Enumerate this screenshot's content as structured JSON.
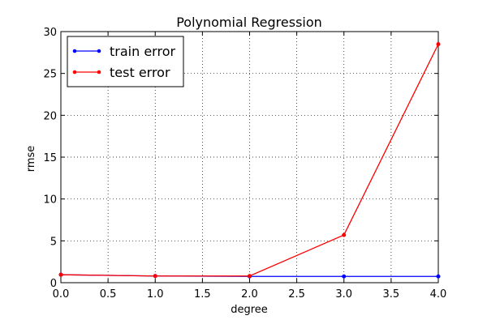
{
  "chart_data": {
    "type": "line",
    "title": "Polynomial Regression",
    "xlabel": "degree",
    "ylabel": "rmse",
    "xlim": [
      0.0,
      4.0
    ],
    "ylim": [
      0,
      30
    ],
    "x_ticks": [
      "0.0",
      "0.5",
      "1.0",
      "1.5",
      "2.0",
      "2.5",
      "3.0",
      "3.5",
      "4.0"
    ],
    "y_ticks": [
      "0",
      "5",
      "10",
      "15",
      "20",
      "25",
      "30"
    ],
    "grid": true,
    "legend_position": "top-left",
    "series": [
      {
        "name": "train error",
        "color": "#0000ff",
        "x": [
          0,
          1,
          2,
          3,
          4
        ],
        "y": [
          0.95,
          0.8,
          0.75,
          0.75,
          0.75
        ]
      },
      {
        "name": "test error",
        "color": "#ff0000",
        "x": [
          0,
          1,
          2,
          3,
          4
        ],
        "y": [
          0.95,
          0.8,
          0.8,
          5.7,
          28.5
        ]
      }
    ]
  }
}
